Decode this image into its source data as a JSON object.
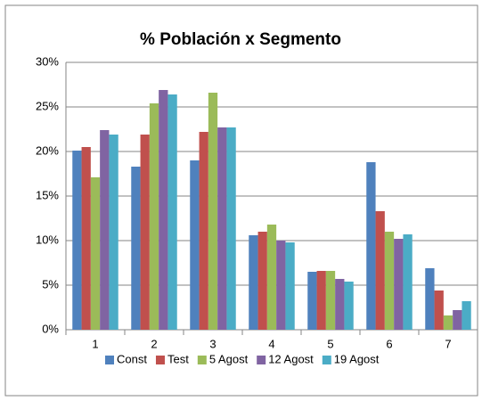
{
  "chart_data": {
    "type": "bar",
    "title": "% Población x Segmento",
    "categories": [
      "1",
      "2",
      "3",
      "4",
      "5",
      "6",
      "7"
    ],
    "series": [
      {
        "name": "Const",
        "color": "#4F81BD",
        "values": [
          20.1,
          18.3,
          19.0,
          10.6,
          6.5,
          18.8,
          6.9
        ]
      },
      {
        "name": "Test",
        "color": "#C0504D",
        "values": [
          20.5,
          21.9,
          22.2,
          11.0,
          6.6,
          13.3,
          4.4
        ]
      },
      {
        "name": "5 Agost",
        "color": "#9BBB59",
        "values": [
          17.1,
          25.4,
          26.6,
          11.8,
          6.6,
          11.0,
          1.6
        ]
      },
      {
        "name": "12 Agost",
        "color": "#8064A2",
        "values": [
          22.4,
          26.9,
          22.7,
          10.0,
          5.7,
          10.2,
          2.2
        ]
      },
      {
        "name": "19 Agost",
        "color": "#4BACC6",
        "values": [
          21.9,
          26.4,
          22.7,
          9.8,
          5.4,
          10.7,
          3.2
        ]
      }
    ],
    "ylim": [
      0,
      30
    ],
    "yticks": [
      {
        "value": 0,
        "label": "0%"
      },
      {
        "value": 5,
        "label": "5%"
      },
      {
        "value": 10,
        "label": "10%"
      },
      {
        "value": 15,
        "label": "15%"
      },
      {
        "value": 20,
        "label": "20%"
      },
      {
        "value": 25,
        "label": "25%"
      },
      {
        "value": 30,
        "label": "30%"
      }
    ],
    "grid": true,
    "legend": "bottom"
  }
}
